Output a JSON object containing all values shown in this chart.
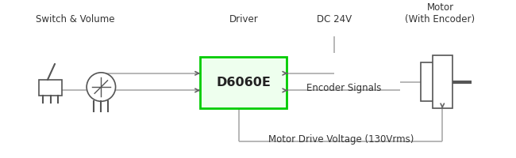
{
  "bg_color": "#ffffff",
  "box_label": "D6060E",
  "box_border_color": "#00cc00",
  "box_fill_color": "#eeffee",
  "driver_label": "Driver",
  "switch_label": "Switch & Volume",
  "motor_label": "Motor\n(With Encoder)",
  "dc24_label": "DC 24V",
  "top_label": "Motor Drive Voltage (130Vrms)",
  "encoder_label": "Encoder Signals",
  "line_color": "#aaaaaa",
  "arrow_color": "#666666",
  "icon_color": "#555555",
  "text_color": "#333333",
  "font_size": 8.5
}
